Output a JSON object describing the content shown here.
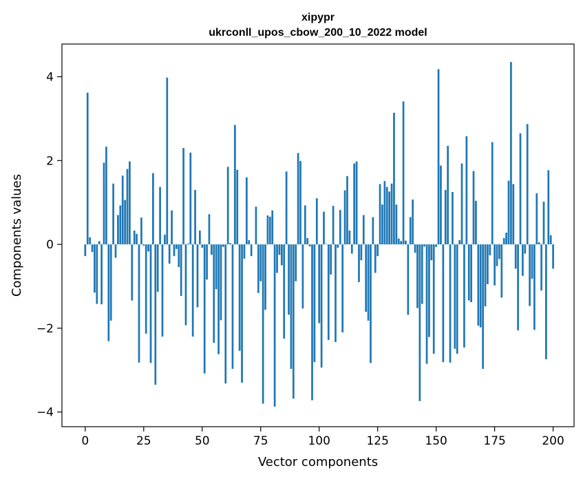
{
  "chart_data": {
    "type": "bar",
    "title": "xipypr",
    "subtitle": "ukrconll_upos_cbow_200_10_2022 model",
    "xlabel": "Vector components",
    "ylabel": "Components values",
    "xlim": [
      -9.95,
      208.95
    ],
    "ylim": [
      -4.35,
      4.78
    ],
    "xticks": [
      0,
      25,
      50,
      75,
      100,
      125,
      150,
      175,
      200
    ],
    "yticks": [
      -4,
      -2,
      0,
      2,
      4
    ],
    "ytick_labels": [
      "−4",
      "−2",
      "0",
      "2",
      "4"
    ],
    "grid": false,
    "legend": "none",
    "bar_color": "#1f77b4",
    "values": [
      -0.28,
      3.62,
      0.17,
      -0.18,
      -1.15,
      -1.42,
      0.08,
      -1.43,
      1.95,
      2.33,
      -2.31,
      -1.82,
      1.45,
      -0.32,
      0.7,
      0.93,
      1.64,
      1.06,
      1.8,
      1.98,
      -1.34,
      0.33,
      0.25,
      -2.82,
      0.64,
      -0.03,
      -2.13,
      -0.17,
      -2.83,
      1.7,
      -3.35,
      -1.13,
      1.37,
      -2.2,
      0.23,
      3.98,
      -0.46,
      0.81,
      -0.28,
      -0.11,
      -0.54,
      -1.23,
      2.3,
      -1.93,
      0.02,
      2.19,
      -2.2,
      1.3,
      -1.5,
      0.33,
      -0.08,
      -3.08,
      -0.84,
      0.72,
      -0.25,
      -2.35,
      -1.07,
      -2.62,
      -1.81,
      -0.06,
      -3.32,
      1.85,
      0.03,
      -2.97,
      2.85,
      1.78,
      -2.54,
      -3.3,
      -0.34,
      1.6,
      0.1,
      -0.28,
      0.0,
      0.9,
      -1.16,
      -0.88,
      -3.8,
      -1.56,
      0.69,
      0.66,
      0.81,
      -3.87,
      -0.68,
      -0.25,
      -0.5,
      -2.25,
      1.74,
      -1.68,
      -2.97,
      -3.68,
      -0.88,
      2.18,
      1.99,
      -1.53,
      0.93,
      0.15,
      -0.05,
      -3.72,
      -2.81,
      1.1,
      -1.88,
      -2.94,
      0.78,
      0.01,
      -2.28,
      -0.72,
      0.92,
      -2.33,
      -0.08,
      0.82,
      -2.1,
      1.29,
      1.63,
      0.33,
      -0.22,
      1.93,
      1.98,
      -0.9,
      -0.38,
      0.7,
      -1.61,
      -1.82,
      -2.83,
      0.65,
      -0.68,
      -0.28,
      1.44,
      0.95,
      1.51,
      1.37,
      1.26,
      1.45,
      3.14,
      0.95,
      0.14,
      0.08,
      3.41,
      0.09,
      -1.68,
      0.65,
      1.07,
      -0.2,
      -1.52,
      -3.74,
      -1.42,
      -0.05,
      -2.85,
      -2.21,
      -0.38,
      -2.61,
      -0.06,
      4.18,
      1.88,
      -2.81,
      1.3,
      2.35,
      -2.82,
      1.25,
      -2.49,
      -2.61,
      0.1,
      1.93,
      -2.46,
      2.58,
      -1.34,
      -1.38,
      1.75,
      1.04,
      -1.94,
      -1.98,
      -2.97,
      -1.48,
      -0.95,
      -0.26,
      2.44,
      -0.98,
      -0.52,
      -0.35,
      -1.27,
      0.15,
      0.28,
      1.52,
      4.35,
      1.44,
      -0.58,
      -2.05,
      2.65,
      -0.75,
      -0.22,
      2.87,
      -1.47,
      -0.82,
      -2.04,
      1.22,
      0.05,
      -1.1,
      1.02,
      -2.74,
      1.77,
      0.22,
      -0.58
    ]
  }
}
